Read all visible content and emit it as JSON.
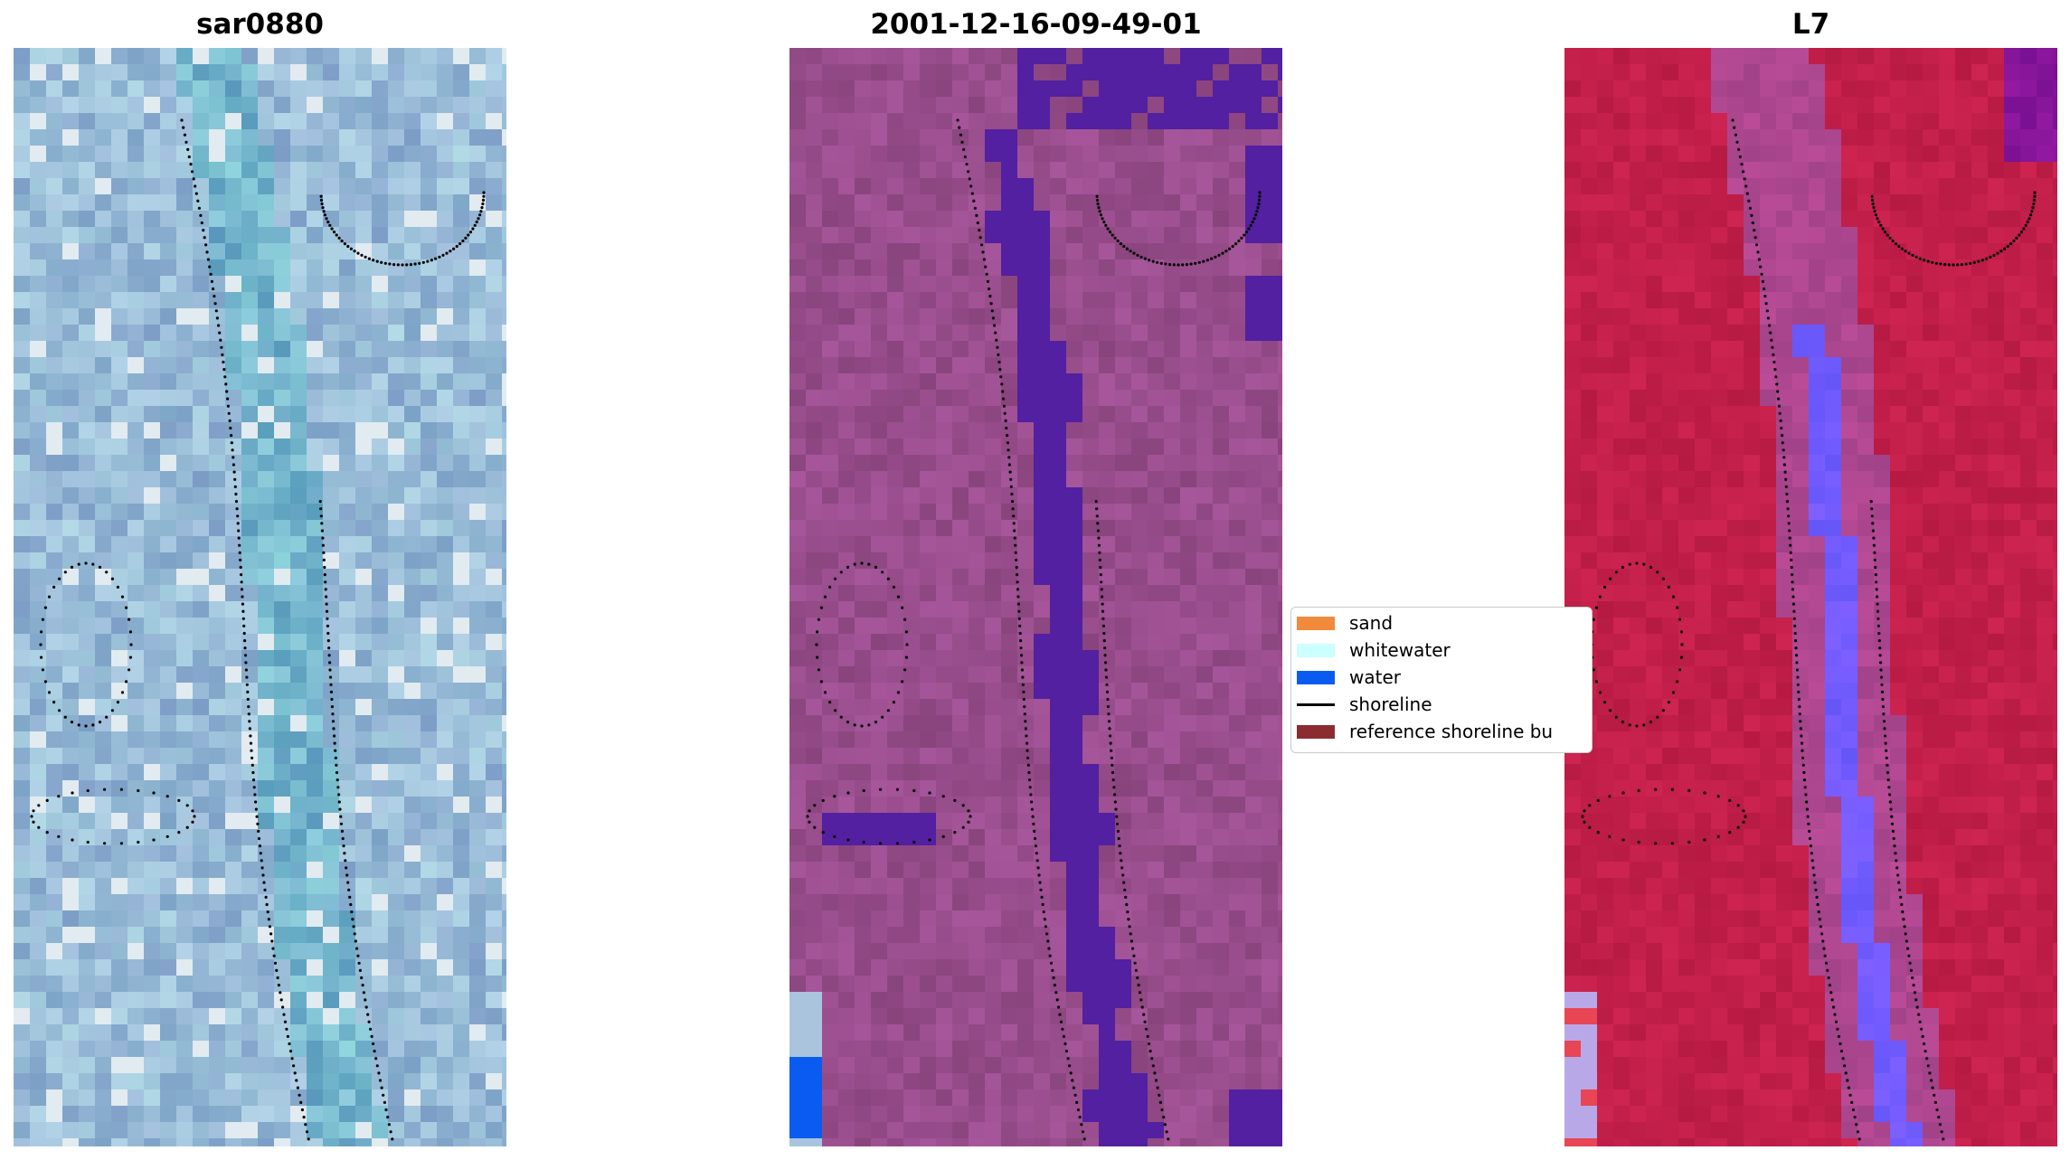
{
  "panels": [
    {
      "title": "sar0880",
      "style": "pale-blue"
    },
    {
      "title": "2001-12-16-09-49-01",
      "style": "purple-classified"
    },
    {
      "title": "L7",
      "style": "crimson"
    }
  ],
  "legend": {
    "items": [
      {
        "label": "sand",
        "kind": "patch",
        "color": "#f28a3c"
      },
      {
        "label": "whitewater",
        "kind": "patch",
        "color": "#ccffff"
      },
      {
        "label": "water",
        "kind": "patch",
        "color": "#0a5cf0"
      },
      {
        "label": "shoreline",
        "kind": "line",
        "color": "#000000"
      },
      {
        "label": "reference shoreline bu",
        "kind": "patch",
        "color": "#8b2c31"
      }
    ]
  },
  "colors": {
    "blue_base": "#9ab8d8",
    "purple_base": "#984d8c",
    "water_class": "#5220a0",
    "crimson_base": "#c21f4a",
    "shoreline_dots": "#000000"
  }
}
